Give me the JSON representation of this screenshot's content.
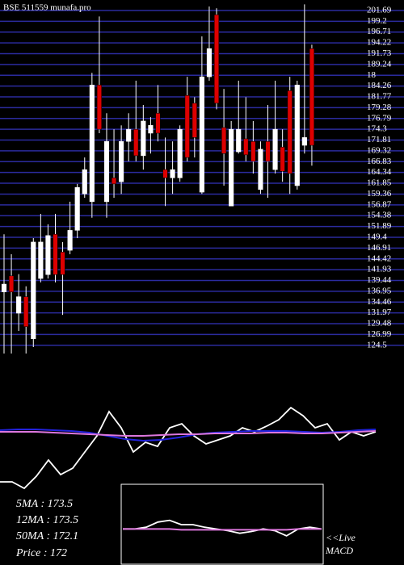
{
  "chart_data": [
    {
      "type": "candlestick",
      "title": "BSE 511559 munafa.pro",
      "open": [
        136.8,
        140.5,
        131.9,
        135.7,
        126.0,
        139.9,
        140.8,
        150.1,
        146.0,
        146.4,
        151.0,
        159.4,
        157.6,
        184.5,
        157.6,
        163.1,
        162.2,
        171.5,
        174.3,
        168.2,
        173.4,
        178.0,
        165.0,
        163.1,
        163.1,
        182.1,
        180.3,
        159.8,
        186.4,
        200.7,
        174.7,
        156.6,
        169.1,
        172.1,
        171.5,
        160.4,
        171.5,
        165.0,
        170.2,
        183.2,
        161.3,
        170.6,
        192.9
      ],
      "high": [
        150.1,
        145.5,
        140.9,
        138.1,
        149.2,
        154.8,
        152.4,
        154.8,
        148.3,
        157.6,
        161.7,
        167.8,
        187.3,
        200.3,
        178.0,
        174.3,
        175.2,
        178.0,
        185.5,
        179.9,
        177.1,
        184.5,
        172.4,
        171.5,
        175.2,
        186.4,
        181.7,
        195.7,
        202.6,
        202.2,
        183.6,
        176.2,
        185.5,
        181.7,
        176.2,
        171.5,
        179.9,
        185.5,
        174.3,
        186.4,
        185.5,
        203.1,
        193.8
      ],
      "low": [
        122.6,
        122.6,
        127.8,
        122.6,
        124.1,
        139.0,
        139.9,
        139.0,
        131.5,
        145.5,
        149.2,
        158.5,
        153.9,
        173.4,
        153.9,
        158.5,
        159.4,
        166.9,
        166.9,
        165.0,
        168.7,
        171.5,
        156.6,
        159.4,
        162.2,
        166.9,
        167.8,
        159.4,
        185.5,
        178.9,
        161.3,
        156.6,
        168.7,
        166.9,
        164.1,
        159.4,
        158.5,
        164.1,
        162.2,
        159.4,
        160.4,
        168.7,
        165.9
      ],
      "close": [
        138.6,
        136.8,
        135.7,
        128.8,
        148.3,
        148.3,
        149.8,
        140.8,
        140.8,
        151.0,
        160.9,
        165.0,
        184.5,
        174.3,
        171.5,
        161.7,
        171.5,
        174.3,
        168.2,
        176.2,
        175.2,
        173.4,
        163.1,
        165.0,
        174.3,
        167.8,
        172.4,
        186.4,
        192.9,
        180.3,
        168.7,
        174.3,
        174.3,
        168.4,
        166.9,
        169.7,
        166.9,
        174.3,
        164.6,
        164.1,
        184.5,
        172.4,
        170.6
      ],
      "up_color": "#ffffff",
      "down_color": "#dd0000",
      "grid_color": "#2b2b9e",
      "ylim": [
        122.6,
        204.1
      ],
      "yticks": [
        124.5,
        126.99,
        129.48,
        131.97,
        134.46,
        136.95,
        139.44,
        141.93,
        144.42,
        146.91,
        149.4,
        151.89,
        154.38,
        156.87,
        159.36,
        161.85,
        164.34,
        166.83,
        169.32,
        171.81,
        174.3,
        176.79,
        179.28,
        181.77,
        184.26,
        {
          "value": 186.75,
          "label": "18"
        },
        189.24,
        191.73,
        194.22,
        196.71,
        199.2,
        201.69
      ],
      "grid": true,
      "annotations": [
        "5MA : 173.5",
        "12MA : 173.5",
        "50MA : 172.1",
        "Price : 172"
      ]
    },
    {
      "type": "line",
      "ylim": [
        -10,
        160
      ],
      "series": [
        {
          "color": "#ffffff",
          "values": [
            3,
            3,
            -5,
            10,
            30,
            12,
            20,
            40,
            60,
            90,
            70,
            40,
            52,
            47,
            70,
            75,
            60,
            50,
            55,
            60,
            70,
            65,
            72,
            80,
            95,
            85,
            70,
            75,
            55,
            65,
            60,
            65
          ]
        },
        {
          "color": "#2222dd",
          "values": [
            67,
            68,
            68,
            67,
            66,
            64,
            60,
            56,
            54,
            55,
            58,
            62,
            64,
            65,
            66,
            66,
            66,
            65,
            64,
            65,
            67,
            68
          ]
        },
        {
          "color": "#dd77dd",
          "values": [
            65,
            65,
            65,
            64,
            63,
            62,
            61,
            60,
            60,
            61,
            62,
            62,
            63,
            63,
            63,
            64,
            64,
            63,
            63,
            64,
            65,
            66
          ]
        }
      ]
    },
    {
      "type": "line",
      "title": "MACD",
      "annotation": "<<Live",
      "ylim": [
        -40,
        50
      ],
      "series": [
        {
          "color": "#ffffff",
          "values": [
            0,
            0,
            2,
            8,
            10,
            5,
            5,
            2,
            0,
            -2,
            -5,
            -3,
            0,
            -2,
            -8,
            0,
            2,
            0
          ]
        },
        {
          "color": "#dd77dd",
          "values": [
            0,
            0,
            0,
            0,
            0,
            -1,
            -1,
            -1,
            -1,
            -1,
            -1,
            -1,
            -1,
            -1,
            -1,
            0,
            0,
            0
          ]
        }
      ]
    }
  ]
}
